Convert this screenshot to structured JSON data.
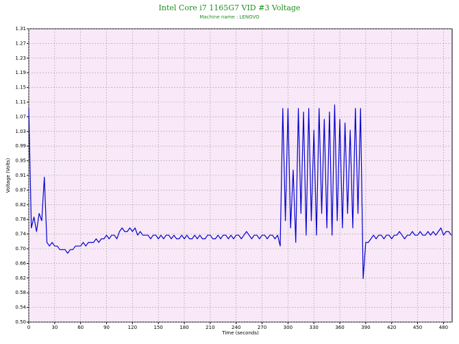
{
  "chart_data": {
    "type": "line",
    "title": "Intel Core i7 1165G7 VID #3 Voltage",
    "subtitle": "Machine name : LENOVO",
    "x_label": "Time (seconds)",
    "y_label": "Voltage (Volts)",
    "xlim": [
      0,
      490
    ],
    "xticks": [
      0,
      30,
      60,
      90,
      120,
      150,
      180,
      210,
      240,
      270,
      300,
      330,
      360,
      390,
      420,
      450,
      480
    ],
    "ylim": [
      0.5,
      1.31
    ],
    "yticks": [
      {
        "value": 0.5,
        "label": "0.50"
      },
      {
        "value": 0.5405,
        "label": "0.54"
      },
      {
        "value": 0.581,
        "label": "0.58"
      },
      {
        "value": 0.6215,
        "label": "0.62"
      },
      {
        "value": 0.662,
        "label": "0.66"
      },
      {
        "value": 0.7025,
        "label": "0.70"
      },
      {
        "value": 0.743,
        "label": "0.74"
      },
      {
        "value": 0.7835,
        "label": "0.78"
      },
      {
        "value": 0.824,
        "label": "0.82"
      },
      {
        "value": 0.8645,
        "label": "0.87"
      },
      {
        "value": 0.905,
        "label": "0.91"
      },
      {
        "value": 0.9455,
        "label": "0.95"
      },
      {
        "value": 0.986,
        "label": "0.99"
      },
      {
        "value": 1.0265,
        "label": "1.03"
      },
      {
        "value": 1.067,
        "label": "1.07"
      },
      {
        "value": 1.1075,
        "label": "1.11"
      },
      {
        "value": 1.148,
        "label": "1.15"
      },
      {
        "value": 1.1885,
        "label": "1.19"
      },
      {
        "value": 1.229,
        "label": "1.23"
      },
      {
        "value": 1.2695,
        "label": "1.27"
      },
      {
        "value": 1.31,
        "label": "1.31"
      }
    ],
    "grid": true,
    "x": [
      0,
      3,
      6,
      9,
      12,
      15,
      18,
      21,
      24,
      27,
      30,
      33,
      36,
      39,
      42,
      45,
      48,
      51,
      54,
      57,
      60,
      63,
      66,
      69,
      72,
      75,
      78,
      81,
      84,
      87,
      90,
      93,
      96,
      99,
      102,
      105,
      108,
      111,
      114,
      117,
      120,
      123,
      126,
      129,
      132,
      135,
      138,
      141,
      144,
      147,
      150,
      153,
      156,
      159,
      162,
      165,
      168,
      171,
      174,
      177,
      180,
      183,
      186,
      189,
      192,
      195,
      198,
      201,
      204,
      207,
      210,
      213,
      216,
      219,
      222,
      225,
      228,
      231,
      234,
      237,
      240,
      243,
      246,
      249,
      252,
      255,
      258,
      261,
      264,
      267,
      270,
      273,
      276,
      279,
      282,
      285,
      288,
      291,
      294,
      297,
      300,
      303,
      306,
      309,
      312,
      315,
      318,
      321,
      324,
      327,
      330,
      333,
      336,
      339,
      342,
      345,
      348,
      351,
      354,
      357,
      360,
      363,
      366,
      369,
      372,
      375,
      378,
      381,
      384,
      387,
      390,
      393,
      396,
      399,
      402,
      405,
      408,
      411,
      414,
      417,
      420,
      423,
      426,
      429,
      432,
      435,
      438,
      441,
      444,
      447,
      450,
      453,
      456,
      459,
      462,
      465,
      468,
      471,
      474,
      477,
      480,
      483,
      486,
      489
    ],
    "series": [
      {
        "color": "#0000cc",
        "values": [
          1.09,
          0.76,
          0.79,
          0.75,
          0.8,
          0.78,
          0.9,
          0.72,
          0.71,
          0.72,
          0.71,
          0.71,
          0.7,
          0.7,
          0.7,
          0.69,
          0.7,
          0.7,
          0.71,
          0.71,
          0.71,
          0.72,
          0.71,
          0.72,
          0.72,
          0.72,
          0.73,
          0.72,
          0.73,
          0.73,
          0.74,
          0.73,
          0.74,
          0.74,
          0.73,
          0.75,
          0.76,
          0.75,
          0.75,
          0.76,
          0.75,
          0.76,
          0.74,
          0.75,
          0.74,
          0.74,
          0.74,
          0.73,
          0.74,
          0.74,
          0.73,
          0.74,
          0.73,
          0.74,
          0.74,
          0.73,
          0.74,
          0.73,
          0.73,
          0.74,
          0.73,
          0.74,
          0.73,
          0.73,
          0.74,
          0.73,
          0.74,
          0.73,
          0.73,
          0.74,
          0.74,
          0.73,
          0.73,
          0.74,
          0.73,
          0.74,
          0.74,
          0.73,
          0.74,
          0.73,
          0.74,
          0.74,
          0.73,
          0.74,
          0.75,
          0.74,
          0.73,
          0.74,
          0.74,
          0.73,
          0.74,
          0.74,
          0.73,
          0.74,
          0.74,
          0.73,
          0.74,
          0.71,
          1.09,
          0.78,
          1.09,
          0.76,
          0.92,
          0.72,
          1.09,
          0.8,
          1.08,
          0.74,
          1.09,
          0.78,
          1.03,
          0.74,
          1.09,
          0.8,
          1.06,
          0.76,
          1.08,
          0.74,
          1.1,
          0.78,
          1.06,
          0.76,
          1.05,
          0.8,
          1.03,
          0.76,
          1.09,
          0.8,
          1.09,
          0.62,
          0.72,
          0.72,
          0.73,
          0.74,
          0.73,
          0.74,
          0.74,
          0.73,
          0.74,
          0.74,
          0.73,
          0.74,
          0.74,
          0.75,
          0.74,
          0.73,
          0.74,
          0.74,
          0.75,
          0.74,
          0.74,
          0.75,
          0.74,
          0.74,
          0.75,
          0.74,
          0.75,
          0.74,
          0.75,
          0.76,
          0.74,
          0.75,
          0.75,
          0.74
        ]
      }
    ]
  }
}
